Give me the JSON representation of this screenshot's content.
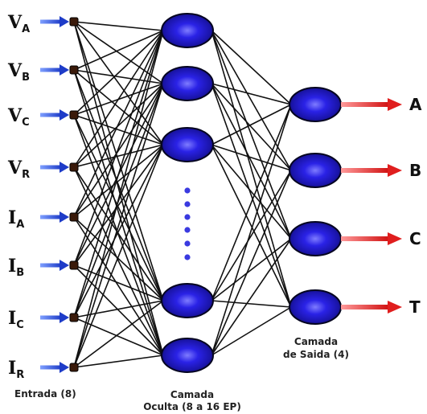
{
  "inputs": [
    {
      "letter": "V",
      "sub": "A"
    },
    {
      "letter": "V",
      "sub": "B"
    },
    {
      "letter": "V",
      "sub": "C"
    },
    {
      "letter": "V",
      "sub": "R"
    },
    {
      "letter": "I",
      "sub": "A"
    },
    {
      "letter": "I",
      "sub": "B"
    },
    {
      "letter": "I",
      "sub": "C"
    },
    {
      "letter": "I",
      "sub": "R"
    }
  ],
  "outputs": [
    "A",
    "B",
    "C",
    "T"
  ],
  "captions": {
    "input_layer": "Entrada (8)",
    "hidden_line1": "Camada",
    "hidden_line2": "Oculta (8 a 16 EP)",
    "output_line1": "Camada",
    "output_line2": "de Saida (4)"
  },
  "colors": {
    "node_core": "#2a22e6",
    "node_rim": "#0a0a3a",
    "input_arrow": "#1e3cc8",
    "output_arrow": "#e01e1e",
    "link": "#111111"
  }
}
